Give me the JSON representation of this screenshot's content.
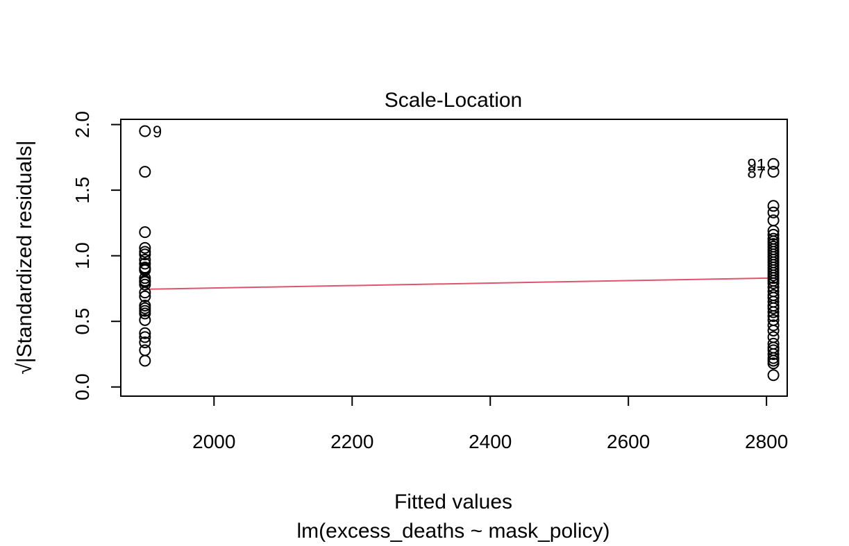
{
  "chart_data": {
    "type": "scatter",
    "title": "Scale-Location",
    "xlabel": "Fitted values",
    "xlabel_sub": "lm(excess_deaths ~ mask_policy)",
    "ylabel": "√|Standardized residuals|",
    "xlim": [
      1865,
      2830
    ],
    "ylim": [
      -0.07,
      2.04
    ],
    "x_ticks": [
      2000,
      2200,
      2400,
      2600,
      2800
    ],
    "x_tick_labels": [
      "2000",
      "2200",
      "2400",
      "2600",
      "2800"
    ],
    "y_ticks": [
      0.0,
      0.5,
      1.0,
      1.5,
      2.0
    ],
    "y_tick_labels": [
      "0.0",
      "0.5",
      "1.0",
      "1.5",
      "2.0"
    ],
    "grid": false,
    "point_color": "#000000",
    "smooth_color": "#DF536B",
    "groups": [
      {
        "x": 1900,
        "y": [
          1.95,
          1.64,
          1.18,
          1.06,
          1.03,
          1.01,
          0.97,
          0.94,
          0.91,
          0.9,
          0.89,
          0.83,
          0.81,
          0.8,
          0.78,
          0.72,
          0.69,
          0.62,
          0.6,
          0.58,
          0.56,
          0.51,
          0.41,
          0.38,
          0.34,
          0.28,
          0.2
        ]
      },
      {
        "x": 2810,
        "y": [
          1.7,
          1.64,
          1.38,
          1.33,
          1.27,
          1.19,
          1.16,
          1.13,
          1.11,
          1.09,
          1.07,
          1.05,
          1.03,
          1.01,
          0.99,
          0.97,
          0.95,
          0.93,
          0.91,
          0.89,
          0.87,
          0.85,
          0.83,
          0.81,
          0.79,
          0.76,
          0.73,
          0.7,
          0.68,
          0.65,
          0.62,
          0.6,
          0.57,
          0.54,
          0.51,
          0.47,
          0.43,
          0.38,
          0.33,
          0.3,
          0.28,
          0.25,
          0.22,
          0.2,
          0.18,
          0.09
        ]
      }
    ],
    "smooth_line": [
      {
        "x": 1900,
        "y": 0.745
      },
      {
        "x": 2810,
        "y": 0.83
      }
    ],
    "annotations": [
      {
        "text": "9",
        "x": 1900,
        "y": 1.95,
        "side": "right"
      },
      {
        "text": "91",
        "x": 2810,
        "y": 1.7,
        "side": "left"
      },
      {
        "text": "87",
        "x": 2810,
        "y": 1.64,
        "side": "left"
      }
    ]
  }
}
